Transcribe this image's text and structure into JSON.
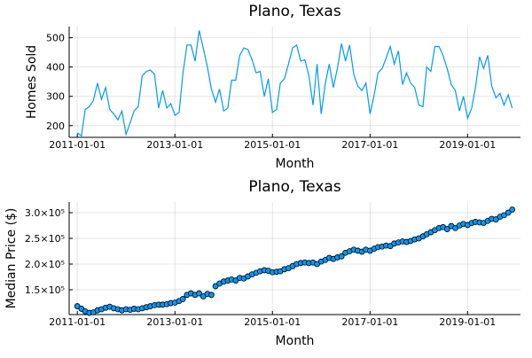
{
  "chart_data": [
    {
      "type": "line",
      "title": "Plano, Texas",
      "x_label": "Month",
      "y_label": "Homes Sold",
      "x": [
        "2011-01-01",
        "2011-02-01",
        "2011-03-01",
        "2011-04-01",
        "2011-05-01",
        "2011-06-01",
        "2011-07-01",
        "2011-08-01",
        "2011-09-01",
        "2011-10-01",
        "2011-11-01",
        "2011-12-01",
        "2012-01-01",
        "2012-02-01",
        "2012-03-01",
        "2012-04-01",
        "2012-05-01",
        "2012-06-01",
        "2012-07-01",
        "2012-08-01",
        "2012-09-01",
        "2012-10-01",
        "2012-11-01",
        "2012-12-01",
        "2013-01-01",
        "2013-02-01",
        "2013-03-01",
        "2013-04-01",
        "2013-05-01",
        "2013-06-01",
        "2013-07-01",
        "2013-08-01",
        "2013-09-01",
        "2013-10-01",
        "2013-11-01",
        "2013-12-01",
        "2014-01-01",
        "2014-02-01",
        "2014-03-01",
        "2014-04-01",
        "2014-05-01",
        "2014-06-01",
        "2014-07-01",
        "2014-08-01",
        "2014-09-01",
        "2014-10-01",
        "2014-11-01",
        "2014-12-01",
        "2015-01-01",
        "2015-02-01",
        "2015-03-01",
        "2015-04-01",
        "2015-05-01",
        "2015-06-01",
        "2015-07-01",
        "2015-08-01",
        "2015-09-01",
        "2015-10-01",
        "2015-11-01",
        "2015-12-01",
        "2016-01-01",
        "2016-02-01",
        "2016-03-01",
        "2016-04-01",
        "2016-05-01",
        "2016-06-01",
        "2016-07-01",
        "2016-08-01",
        "2016-09-01",
        "2016-10-01",
        "2016-11-01",
        "2016-12-01",
        "2017-01-01",
        "2017-02-01",
        "2017-03-01",
        "2017-04-01",
        "2017-05-01",
        "2017-06-01",
        "2017-07-01",
        "2017-08-01",
        "2017-09-01",
        "2017-10-01",
        "2017-11-01",
        "2017-12-01",
        "2018-01-01",
        "2018-02-01",
        "2018-03-01",
        "2018-04-01",
        "2018-05-01",
        "2018-06-01",
        "2018-07-01",
        "2018-08-01",
        "2018-09-01",
        "2018-10-01",
        "2018-11-01",
        "2018-12-01",
        "2019-01-01",
        "2019-02-01",
        "2019-03-01",
        "2019-04-01",
        "2019-05-01",
        "2019-06-01",
        "2019-07-01",
        "2019-08-01",
        "2019-09-01",
        "2019-10-01",
        "2019-11-01",
        "2019-12-01"
      ],
      "series": [
        {
          "name": "Homes Sold",
          "color": "#009af9",
          "values": [
            175,
            165,
            255,
            265,
            285,
            345,
            290,
            330,
            255,
            240,
            220,
            250,
            170,
            210,
            250,
            265,
            370,
            385,
            390,
            375,
            260,
            320,
            260,
            275,
            235,
            245,
            375,
            475,
            475,
            420,
            525,
            465,
            400,
            325,
            280,
            325,
            250,
            260,
            355,
            355,
            440,
            465,
            460,
            425,
            380,
            385,
            300,
            360,
            245,
            255,
            345,
            360,
            410,
            465,
            475,
            420,
            425,
            370,
            270,
            410,
            240,
            345,
            410,
            330,
            395,
            480,
            420,
            475,
            375,
            335,
            320,
            345,
            240,
            305,
            380,
            395,
            430,
            470,
            410,
            455,
            340,
            380,
            345,
            330,
            270,
            265,
            400,
            385,
            470,
            470,
            440,
            395,
            340,
            320,
            250,
            300,
            225,
            260,
            330,
            435,
            395,
            440,
            335,
            295,
            310,
            270,
            305,
            260
          ]
        }
      ],
      "xlim": [
        "2010-11-01",
        "2020-02-01"
      ],
      "xticks": [
        "2011-01-01",
        "2013-01-01",
        "2015-01-01",
        "2017-01-01",
        "2019-01-01"
      ],
      "ylim": [
        160,
        538
      ],
      "yticks": [
        200,
        300,
        400,
        500
      ],
      "grid": true
    },
    {
      "type": "scatter",
      "title": "Plano, Texas",
      "x_label": "Month",
      "y_label": "Median Price ($)",
      "x": [
        "2011-01-01",
        "2011-02-01",
        "2011-03-01",
        "2011-04-01",
        "2011-05-01",
        "2011-06-01",
        "2011-07-01",
        "2011-08-01",
        "2011-09-01",
        "2011-10-01",
        "2011-11-01",
        "2011-12-01",
        "2012-01-01",
        "2012-02-01",
        "2012-03-01",
        "2012-04-01",
        "2012-05-01",
        "2012-06-01",
        "2012-07-01",
        "2012-08-01",
        "2012-09-01",
        "2012-10-01",
        "2012-11-01",
        "2012-12-01",
        "2013-01-01",
        "2013-02-01",
        "2013-03-01",
        "2013-04-01",
        "2013-05-01",
        "2013-06-01",
        "2013-07-01",
        "2013-08-01",
        "2013-09-01",
        "2013-10-01",
        "2013-11-01",
        "2013-12-01",
        "2014-01-01",
        "2014-02-01",
        "2014-03-01",
        "2014-04-01",
        "2014-05-01",
        "2014-06-01",
        "2014-07-01",
        "2014-08-01",
        "2014-09-01",
        "2014-10-01",
        "2014-11-01",
        "2014-12-01",
        "2015-01-01",
        "2015-02-01",
        "2015-03-01",
        "2015-04-01",
        "2015-05-01",
        "2015-06-01",
        "2015-07-01",
        "2015-08-01",
        "2015-09-01",
        "2015-10-01",
        "2015-11-01",
        "2015-12-01",
        "2016-01-01",
        "2016-02-01",
        "2016-03-01",
        "2016-04-01",
        "2016-05-01",
        "2016-06-01",
        "2016-07-01",
        "2016-08-01",
        "2016-09-01",
        "2016-10-01",
        "2016-11-01",
        "2016-12-01",
        "2017-01-01",
        "2017-02-01",
        "2017-03-01",
        "2017-04-01",
        "2017-05-01",
        "2017-06-01",
        "2017-07-01",
        "2017-08-01",
        "2017-09-01",
        "2017-10-01",
        "2017-11-01",
        "2017-12-01",
        "2018-01-01",
        "2018-02-01",
        "2018-03-01",
        "2018-04-01",
        "2018-05-01",
        "2018-06-01",
        "2018-07-01",
        "2018-08-01",
        "2018-09-01",
        "2018-10-01",
        "2018-11-01",
        "2018-12-01",
        "2019-01-01",
        "2019-02-01",
        "2019-03-01",
        "2019-04-01",
        "2019-05-01",
        "2019-06-01",
        "2019-07-01",
        "2019-08-01",
        "2019-09-01",
        "2019-10-01",
        "2019-11-01",
        "2019-12-01"
      ],
      "series": [
        {
          "name": "Median Price ($)",
          "color": "#009af9",
          "values": [
            118000,
            113000,
            108000,
            105000,
            106000,
            110000,
            112000,
            115000,
            117000,
            114000,
            112000,
            110000,
            112000,
            111000,
            113000,
            112000,
            114000,
            116000,
            118000,
            120000,
            121000,
            121000,
            122000,
            124000,
            125000,
            128000,
            132000,
            140000,
            143000,
            140000,
            143000,
            137000,
            142000,
            140000,
            157000,
            162000,
            166000,
            168000,
            170000,
            168000,
            173000,
            172000,
            176000,
            180000,
            183000,
            186000,
            188000,
            187000,
            184000,
            185000,
            186000,
            190000,
            192000,
            196000,
            200000,
            202000,
            203000,
            202000,
            203000,
            200000,
            205000,
            208000,
            212000,
            210000,
            213000,
            215000,
            222000,
            225000,
            228000,
            226000,
            224000,
            228000,
            226000,
            230000,
            233000,
            234000,
            236000,
            235000,
            240000,
            242000,
            244000,
            243000,
            245000,
            248000,
            250000,
            254000,
            258000,
            262000,
            266000,
            270000,
            272000,
            268000,
            274000,
            270000,
            275000,
            278000,
            276000,
            280000,
            282000,
            281000,
            280000,
            284000,
            288000,
            287000,
            292000,
            295000,
            300000,
            306000
          ]
        }
      ],
      "xlim": [
        "2010-11-01",
        "2020-02-01"
      ],
      "xticks": [
        "2011-01-01",
        "2013-01-01",
        "2015-01-01",
        "2017-01-01",
        "2019-01-01"
      ],
      "ylim": [
        101700,
        320700
      ],
      "yticks": [
        {
          "value": 150000,
          "label": "1.5×10⁵"
        },
        {
          "value": 200000,
          "label": "2.0×10⁵"
        },
        {
          "value": 250000,
          "label": "2.5×10⁵"
        },
        {
          "value": 300000,
          "label": "3.0×10⁵"
        }
      ],
      "grid": true
    }
  ]
}
